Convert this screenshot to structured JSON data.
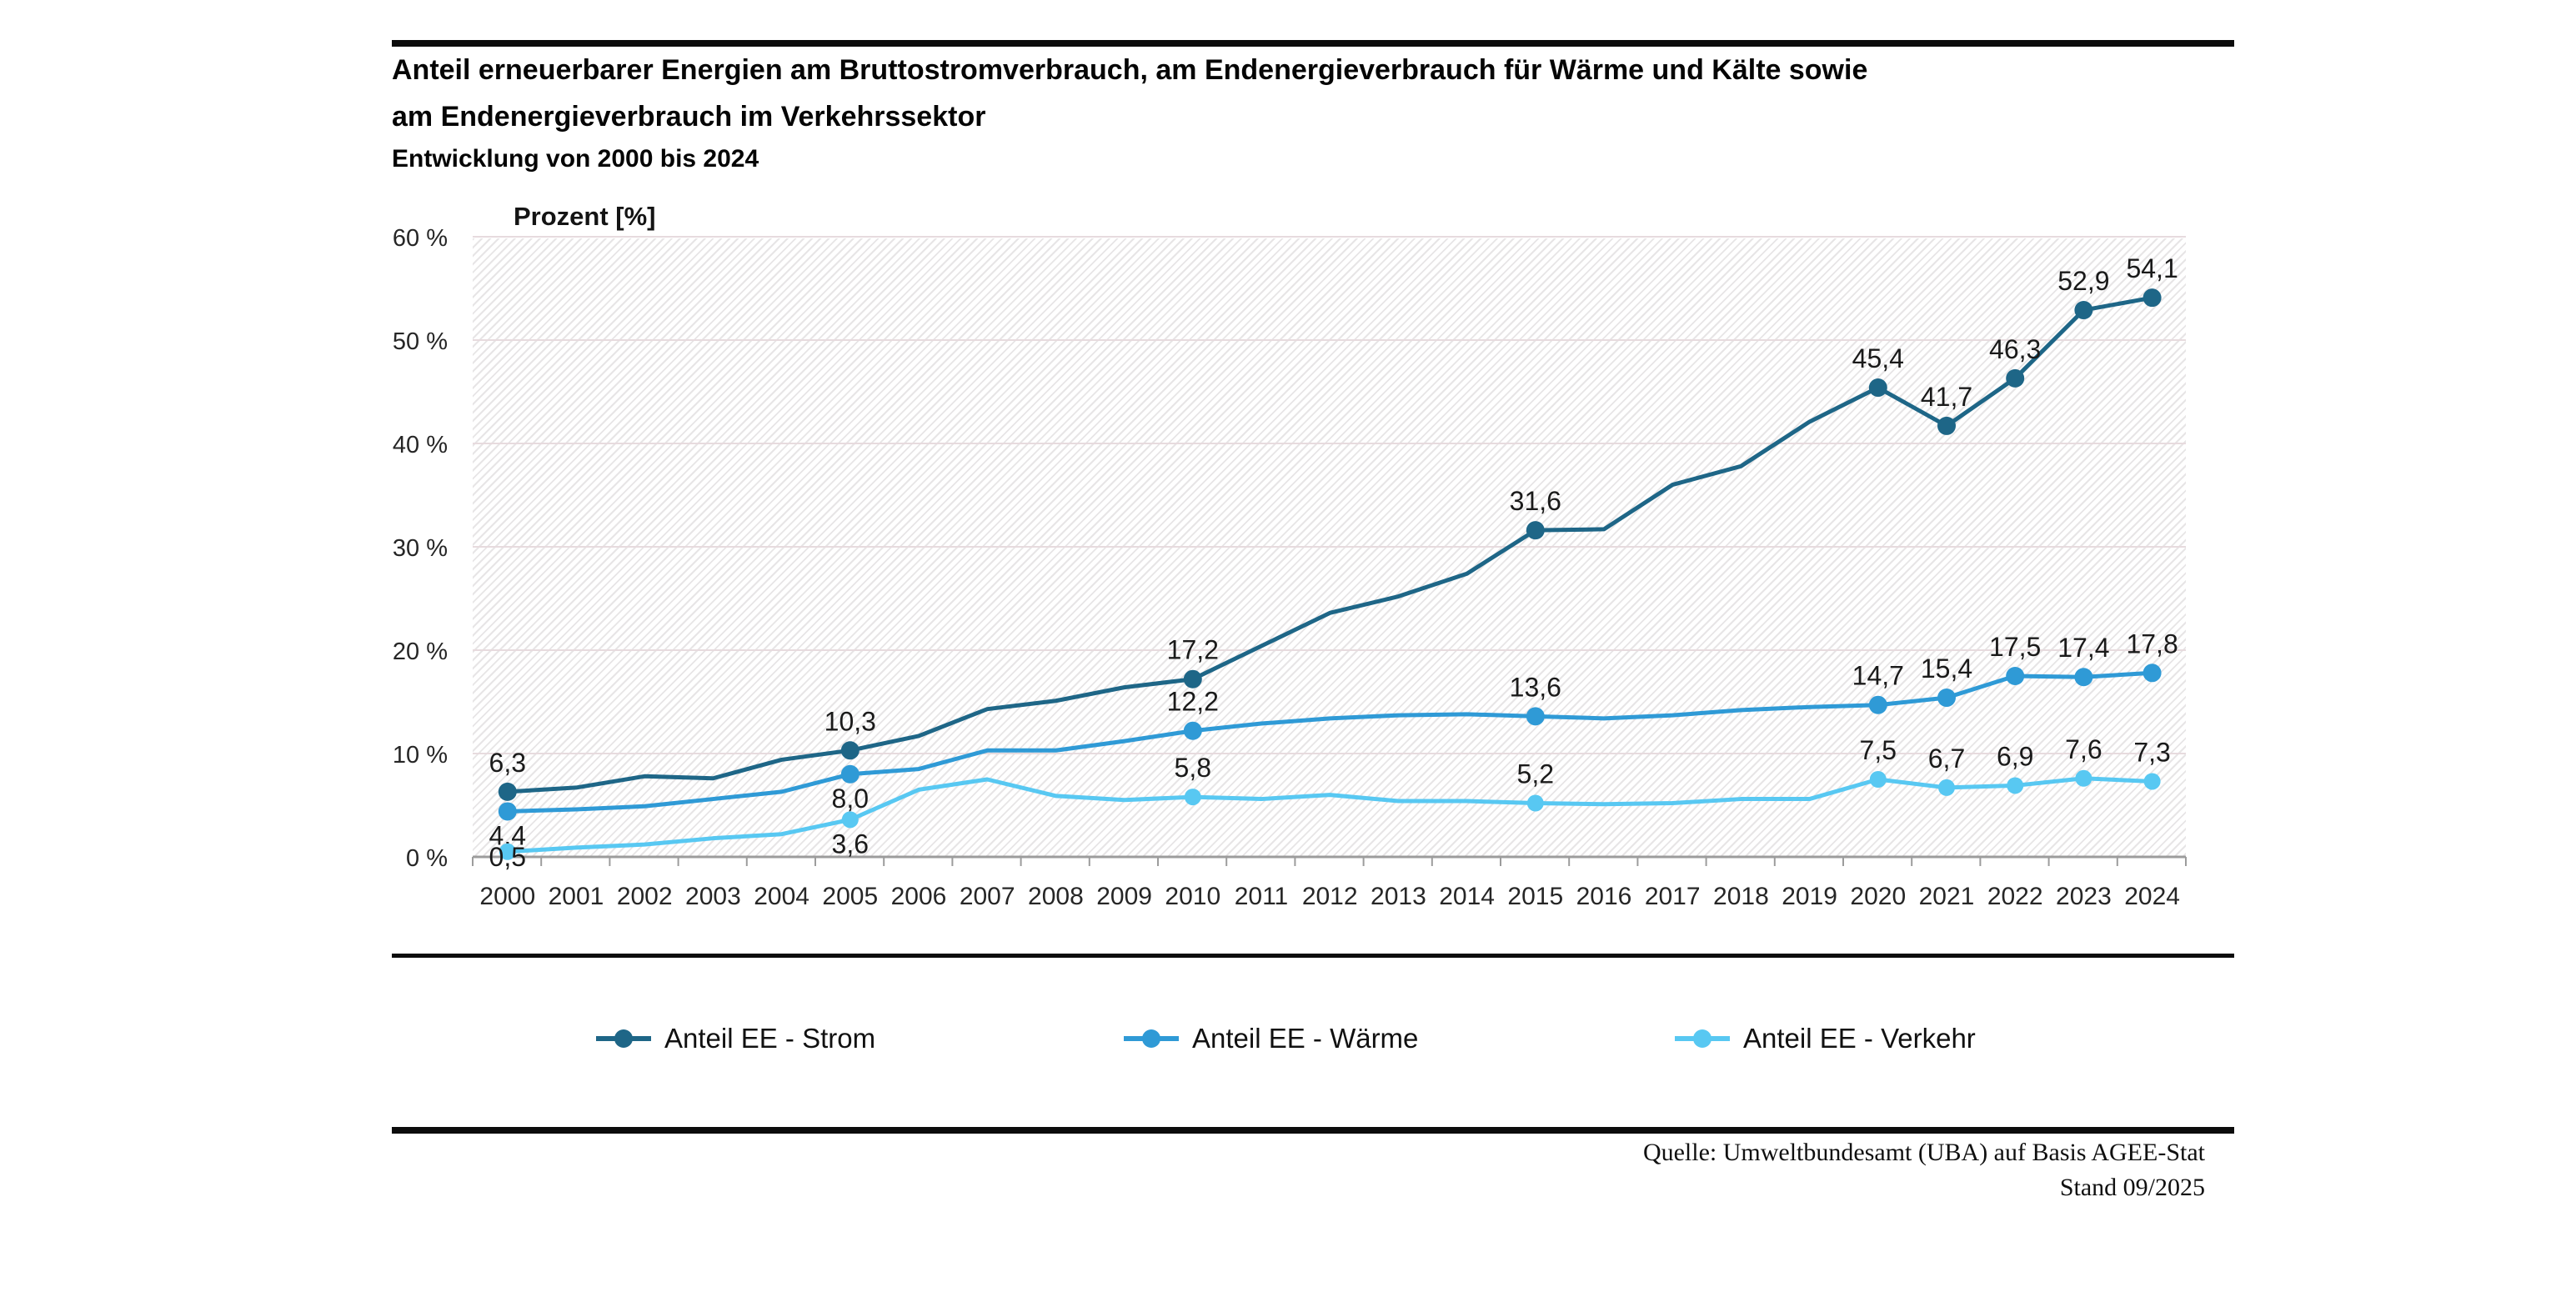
{
  "header": {
    "title_line1": "Anteil erneuerbarer Energien am Bruttostromverbrauch, am Endenergieverbrauch für Wärme und Kälte sowie",
    "title_line2": "am Endenergieverbrauch im Verkehrssektor",
    "subtitle": "Entwicklung von 2000 bis 2024"
  },
  "chart_data": {
    "type": "line",
    "title": "Anteil erneuerbarer Energien am Bruttostromverbrauch, am Endenergieverbrauch für Wärme und Kälte sowie am Endenergieverbrauch im Verkehrssektor",
    "subtitle": "Entwicklung von 2000 bis 2024",
    "ylabel": "Prozent [%]",
    "xlabel": "",
    "ylim": [
      0,
      60
    ],
    "grid": true,
    "background_hatch": true,
    "legend_position": "bottom",
    "yticks": [
      {
        "value": 0,
        "label": "0 %"
      },
      {
        "value": 10,
        "label": "10 %"
      },
      {
        "value": 20,
        "label": "20 %"
      },
      {
        "value": 30,
        "label": "30 %"
      },
      {
        "value": 40,
        "label": "40 %"
      },
      {
        "value": 50,
        "label": "50 %"
      },
      {
        "value": 60,
        "label": "60 %"
      }
    ],
    "x": [
      2000,
      2001,
      2002,
      2003,
      2004,
      2005,
      2006,
      2007,
      2008,
      2009,
      2010,
      2011,
      2012,
      2013,
      2014,
      2015,
      2016,
      2017,
      2018,
      2019,
      2020,
      2021,
      2022,
      2023,
      2024
    ],
    "colors": {
      "grid": "#e7dbde",
      "axis": "#9c9c9c",
      "tick_label": "#262626",
      "data_label": "#1a1a1a",
      "hatch": "#e7e5e6",
      "rule": "#0c0c0c"
    },
    "series": [
      {
        "name": "Anteil EE - Strom",
        "color": "#1e6687",
        "marker_radius": 11,
        "values": [
          6.3,
          6.7,
          7.8,
          7.6,
          9.4,
          10.3,
          11.7,
          14.3,
          15.1,
          16.4,
          17.2,
          20.4,
          23.6,
          25.2,
          27.4,
          31.6,
          31.7,
          36.0,
          37.8,
          42.1,
          45.4,
          41.7,
          46.3,
          52.9,
          54.1
        ],
        "point_labels": [
          {
            "year": 2000,
            "text": "6,3",
            "pos": "above"
          },
          {
            "year": 2005,
            "text": "10,3",
            "pos": "above"
          },
          {
            "year": 2010,
            "text": "17,2",
            "pos": "above"
          },
          {
            "year": 2015,
            "text": "31,6",
            "pos": "above"
          },
          {
            "year": 2020,
            "text": "45,4",
            "pos": "above"
          },
          {
            "year": 2021,
            "text": "41,7",
            "pos": "above"
          },
          {
            "year": 2022,
            "text": "46,3",
            "pos": "above"
          },
          {
            "year": 2023,
            "text": "52,9",
            "pos": "above"
          },
          {
            "year": 2024,
            "text": "54,1",
            "pos": "above"
          }
        ]
      },
      {
        "name": "Anteil EE - Wärme",
        "color": "#2f9ad6",
        "marker_radius": 11,
        "values": [
          4.4,
          4.6,
          4.9,
          5.6,
          6.3,
          8.0,
          8.5,
          10.3,
          10.3,
          11.2,
          12.2,
          12.9,
          13.4,
          13.7,
          13.8,
          13.6,
          13.4,
          13.7,
          14.2,
          14.5,
          14.7,
          15.4,
          17.5,
          17.4,
          17.8
        ],
        "point_labels": [
          {
            "year": 2000,
            "text": "4,4",
            "pos": "below"
          },
          {
            "year": 2005,
            "text": "8,0",
            "pos": "below"
          },
          {
            "year": 2010,
            "text": "12,2",
            "pos": "above"
          },
          {
            "year": 2015,
            "text": "13,6",
            "pos": "above"
          },
          {
            "year": 2020,
            "text": "14,7",
            "pos": "above"
          },
          {
            "year": 2021,
            "text": "15,4",
            "pos": "above"
          },
          {
            "year": 2022,
            "text": "17,5",
            "pos": "above"
          },
          {
            "year": 2023,
            "text": "17,4",
            "pos": "above"
          },
          {
            "year": 2024,
            "text": "17,8",
            "pos": "above"
          }
        ]
      },
      {
        "name": "Anteil EE - Verkehr",
        "color": "#58c8f2",
        "marker_radius": 10,
        "values": [
          0.5,
          0.9,
          1.2,
          1.8,
          2.2,
          3.6,
          6.5,
          7.5,
          5.9,
          5.5,
          5.8,
          5.6,
          6.0,
          5.4,
          5.4,
          5.2,
          5.1,
          5.2,
          5.6,
          5.6,
          7.5,
          6.7,
          6.9,
          7.6,
          7.3
        ],
        "point_labels": [
          {
            "year": 2000,
            "text": "0,5",
            "pos": "below"
          },
          {
            "year": 2005,
            "text": "3,6",
            "pos": "below"
          },
          {
            "year": 2010,
            "text": "5,8",
            "pos": "above"
          },
          {
            "year": 2015,
            "text": "5,2",
            "pos": "above"
          },
          {
            "year": 2020,
            "text": "7,5",
            "pos": "above"
          },
          {
            "year": 2021,
            "text": "6,7",
            "pos": "above"
          },
          {
            "year": 2022,
            "text": "6,9",
            "pos": "above"
          },
          {
            "year": 2023,
            "text": "7,6",
            "pos": "above"
          },
          {
            "year": 2024,
            "text": "7,3",
            "pos": "above"
          }
        ]
      }
    ]
  },
  "footer": {
    "source": "Quelle: Umweltbundesamt (UBA) auf Basis AGEE-Stat",
    "stand": "Stand 09/2025"
  }
}
